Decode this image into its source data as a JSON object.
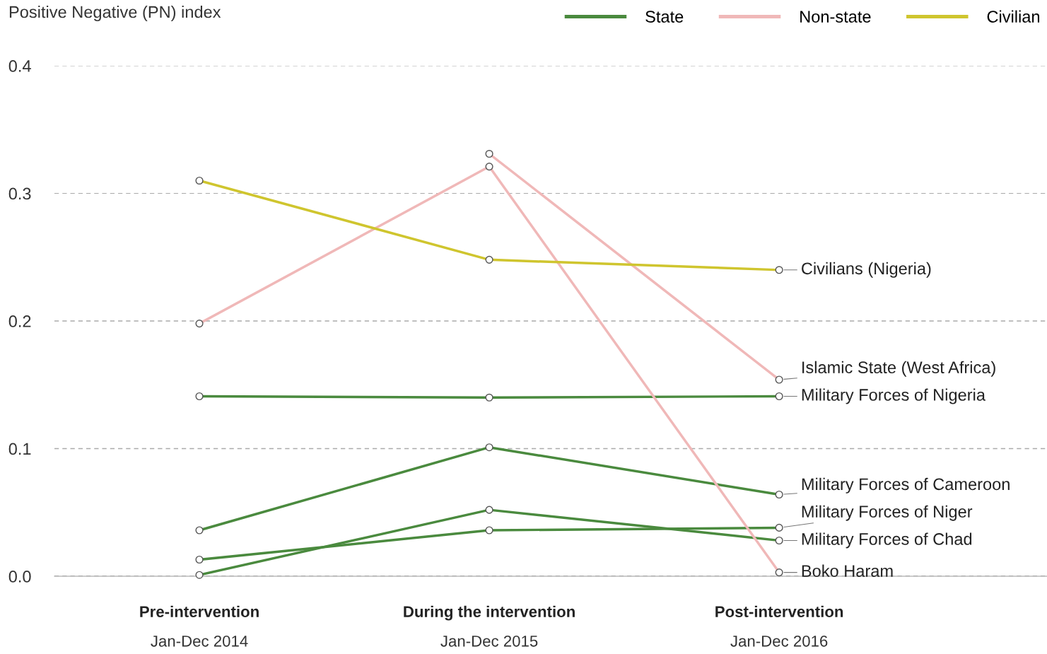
{
  "chart_data": {
    "type": "line",
    "ylabel": "Positive Negative (PN) index",
    "categories": [
      "Pre-intervention\nJan-Dec 2014",
      "During the intervention\nJan-Dec 2015",
      "Post-intervention\nJan-Dec 2016"
    ],
    "series": [
      {
        "name": "State",
        "color": "#4a8a3e",
        "values": [
          0.141,
          0.14,
          0.141
        ]
      },
      {
        "color": "#4a8a3e",
        "values": [
          0.036,
          0.101,
          0.064
        ]
      },
      {
        "color": "#4a8a3e",
        "values": [
          0.013,
          0.036,
          0.038
        ]
      },
      {
        "color": "#4a8a3e",
        "values": [
          0.001,
          0.052,
          0.028
        ]
      },
      {
        "name": "Non-state",
        "color": "#f0b8b8",
        "values": [
          null,
          0.331,
          0.154
        ]
      },
      {
        "color": "#f0b8b8",
        "values": [
          0.198,
          0.321,
          0.003
        ]
      },
      {
        "name": "Civilian",
        "color": "#cfc52e",
        "values": [
          0.31,
          0.248,
          0.24
        ]
      }
    ],
    "annotations": [
      {
        "text": "Civilians (Nigeria)",
        "x": "Post-intervention\nJan-Dec 2016",
        "y": 0.24
      },
      {
        "text": "Islamic State (West Africa)",
        "x": "Post-intervention\nJan-Dec 2016",
        "y": 0.154
      },
      {
        "text": "Military Forces of Nigeria",
        "x": "Post-intervention\nJan-Dec 2016",
        "y": 0.141
      },
      {
        "text": "Military Forces of Cameroon",
        "x": "Post-intervention\nJan-Dec 2016",
        "y": 0.064
      },
      {
        "text": "Military Forces of Niger",
        "x": "Post-intervention\nJan-Dec 2016",
        "y": 0.038
      },
      {
        "text": "Military Forces of Chad",
        "x": "Post-intervention\nJan-Dec 2016",
        "y": 0.028
      },
      {
        "text": "Boko Haram",
        "x": "Post-intervention\nJan-Dec 2016",
        "y": 0.003
      }
    ],
    "ylim": [
      0,
      0.4
    ],
    "yticks": [
      "0.0",
      0.1,
      0.2,
      0.3,
      0.4
    ],
    "grid": "y",
    "legend": "top right",
    "marker": "circle",
    "line_style": "solid"
  }
}
